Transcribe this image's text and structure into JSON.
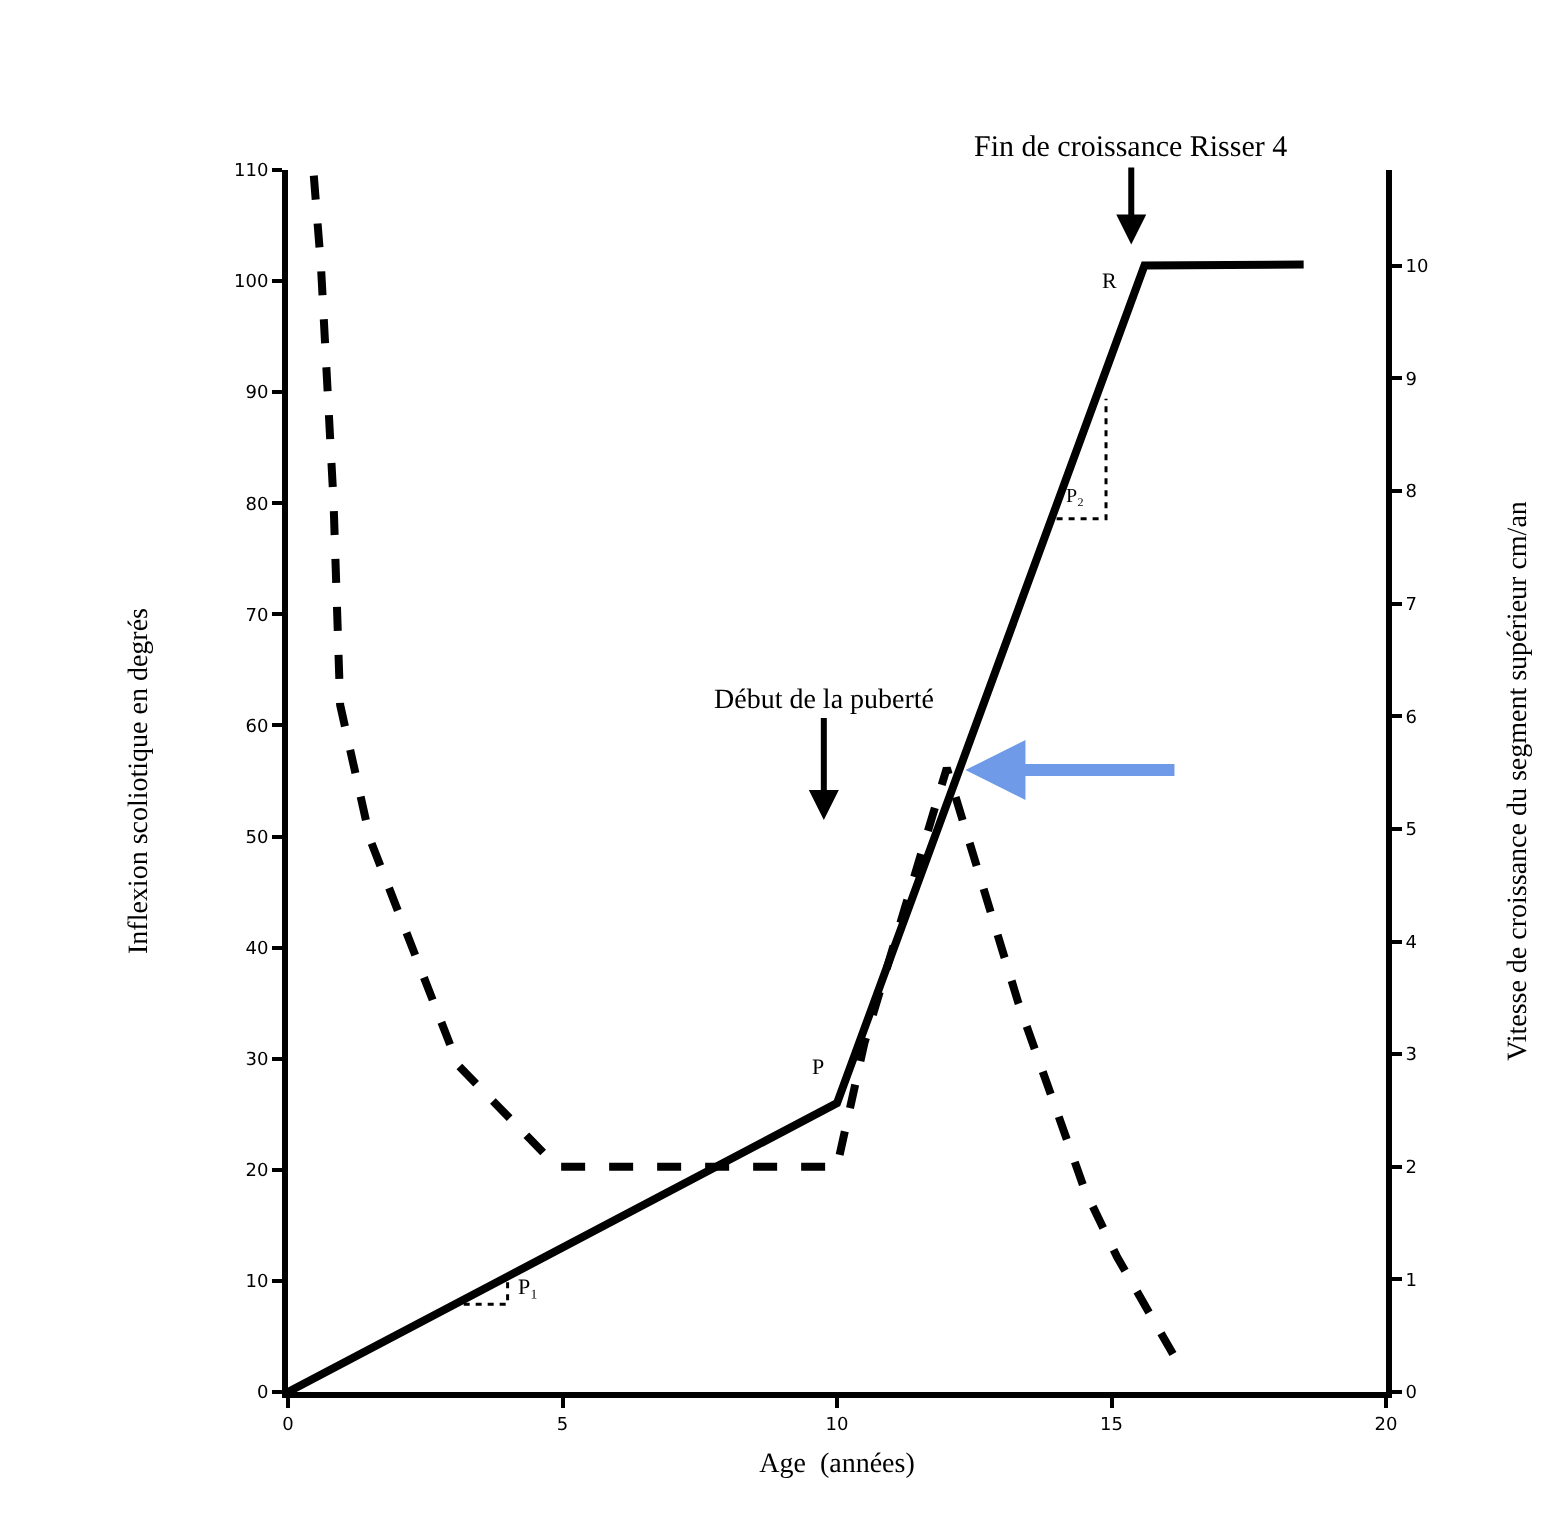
{
  "chart_data": {
    "type": "line",
    "xlabel": "Age  (années)",
    "ylabel": "Inflexion scoliotique en degrés",
    "y2label": "Vitesse de croissance du segment supérieur cm/an",
    "xlim": [
      0,
      20
    ],
    "xticks": [
      0,
      5,
      10,
      15,
      20
    ],
    "ylim": [
      0,
      110
    ],
    "yticks": [
      0,
      10,
      20,
      30,
      40,
      50,
      60,
      70,
      80,
      90,
      100,
      110
    ],
    "y2lim": [
      0,
      10.85
    ],
    "y2ticks": [
      0,
      1,
      2,
      3,
      4,
      5,
      6,
      7,
      8,
      9,
      10
    ],
    "marker": "none",
    "series": [
      {
        "color": "#000000",
        "line_style": "solid",
        "x": [
          0,
          10,
          15.6,
          18.5
        ],
        "values": [
          0,
          26,
          101.4,
          101.5
        ]
      },
      {
        "color": "#000000",
        "line_style": "dashed",
        "axis": "y2",
        "x": [
          0.47,
          0.6,
          0.83,
          0.95,
          1.5,
          3.1,
          4.9,
          10.0,
          10.5,
          12.0,
          13.3,
          14.5,
          15.1,
          16.2
        ],
        "values": [
          10.8,
          10.0,
          7.9,
          6.1,
          4.9,
          2.9,
          2.0,
          2.0,
          3.1,
          5.54,
          3.46,
          1.81,
          1.2,
          0.27
        ]
      },
      {
        "color": "#000000",
        "line_style": "dotted",
        "x": [
          3.2,
          4.0,
          4.0
        ],
        "values": [
          7.9,
          7.9,
          10
        ]
      },
      {
        "color": "#000000",
        "line_style": "dotted",
        "x": [
          14.0,
          14.9,
          14.9
        ],
        "values": [
          78.6,
          78.6,
          89.4
        ]
      }
    ],
    "annotations": [
      "Fin de croissance Risser 4",
      "Début de la puberté",
      "P₁",
      "P",
      "P₂",
      "R"
    ]
  }
}
